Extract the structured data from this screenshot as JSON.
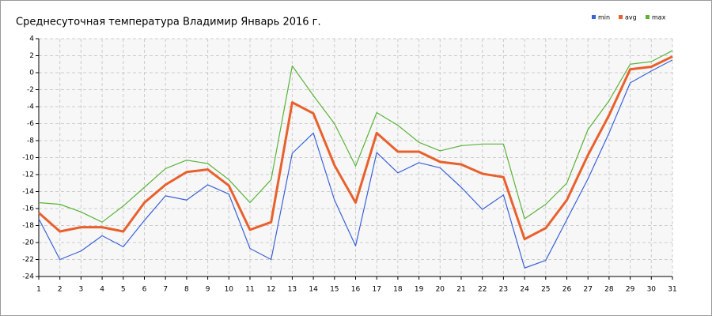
{
  "chart_data": {
    "type": "line",
    "title": "Среднесуточная температура Владимир  Январь 2016 г.",
    "x": [
      1,
      2,
      3,
      4,
      5,
      6,
      7,
      8,
      9,
      10,
      11,
      12,
      13,
      14,
      15,
      16,
      17,
      18,
      19,
      20,
      21,
      22,
      23,
      24,
      25,
      26,
      27,
      28,
      29,
      30,
      31
    ],
    "xlim": [
      1,
      31
    ],
    "ylim": [
      -24,
      4
    ],
    "yticks": [
      -24,
      -22,
      -20,
      -18,
      -16,
      -14,
      -12,
      -10,
      -8,
      -6,
      -4,
      -2,
      0,
      2,
      4
    ],
    "grid": true,
    "legend": "top-right",
    "series": [
      {
        "name": "min",
        "color": "#3a62d8",
        "values": [
          -17.2,
          -22.0,
          -21.0,
          -19.2,
          -20.5,
          -17.4,
          -14.5,
          -15.0,
          -13.2,
          -14.3,
          -20.7,
          -22.0,
          -9.5,
          -7.1,
          -15.0,
          -20.4,
          -9.4,
          -11.8,
          -10.6,
          -11.2,
          -13.5,
          -16.1,
          -14.4,
          -23.0,
          -22.1,
          -17.3,
          -12.5,
          -7.1,
          -1.2,
          0.2,
          1.5
        ]
      },
      {
        "name": "avg",
        "color": "#e8602c",
        "values": [
          -16.5,
          -18.7,
          -18.2,
          -18.2,
          -18.7,
          -15.3,
          -13.2,
          -11.7,
          -11.4,
          -13.3,
          -18.5,
          -17.6,
          -3.5,
          -4.8,
          -10.9,
          -15.3,
          -7.1,
          -9.3,
          -9.3,
          -10.5,
          -10.8,
          -11.9,
          -12.3,
          -19.6,
          -18.3,
          -15.0,
          -9.7,
          -5.0,
          0.4,
          0.7,
          1.9
        ]
      },
      {
        "name": "max",
        "color": "#5bb33a",
        "values": [
          -15.3,
          -15.5,
          -16.4,
          -17.6,
          -15.7,
          -13.5,
          -11.3,
          -10.3,
          -10.7,
          -12.6,
          -15.3,
          -12.6,
          0.8,
          -2.7,
          -6.0,
          -11.0,
          -4.7,
          -6.2,
          -8.2,
          -9.2,
          -8.6,
          -8.4,
          -8.4,
          -17.2,
          -15.5,
          -13.0,
          -6.7,
          -3.3,
          1.0,
          1.3,
          2.6
        ]
      }
    ]
  }
}
